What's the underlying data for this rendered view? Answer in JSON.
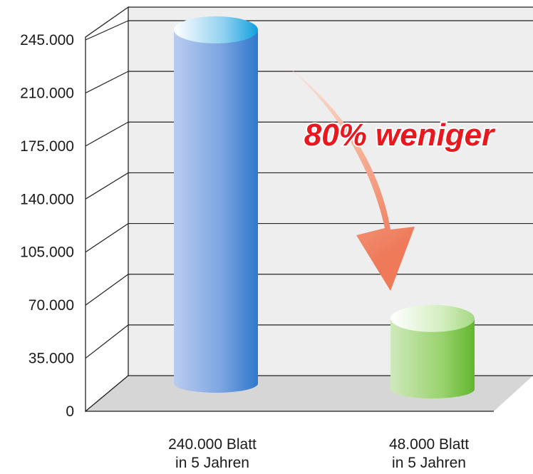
{
  "chart_data": {
    "type": "bar",
    "categories": [
      [
        "240.000 Blatt",
        "in 5 Jahren"
      ],
      [
        "48.000 Blatt",
        "in 5 Jahren"
      ]
    ],
    "values": [
      240000,
      48000
    ],
    "ylim": [
      0,
      245000
    ],
    "yticks": [
      0,
      35000,
      70000,
      105000,
      140000,
      175000,
      210000,
      245000
    ],
    "ytick_labels": [
      "0",
      "35.000",
      "70.000",
      "105.000",
      "140.000",
      "175.000",
      "210.000",
      "245.000"
    ],
    "annotation": "80% weniger",
    "grid": true,
    "colors": {
      "bar_1": "#5b8fd8",
      "bar_1_light": "#b8cdf0",
      "bar_2": "#7cc544",
      "bar_2_light": "#d6efc4",
      "annotation_text": "#e8181f",
      "arrow": "#f08a6a",
      "wall": "#eeeeee",
      "floor": "#d6d6d6"
    }
  }
}
